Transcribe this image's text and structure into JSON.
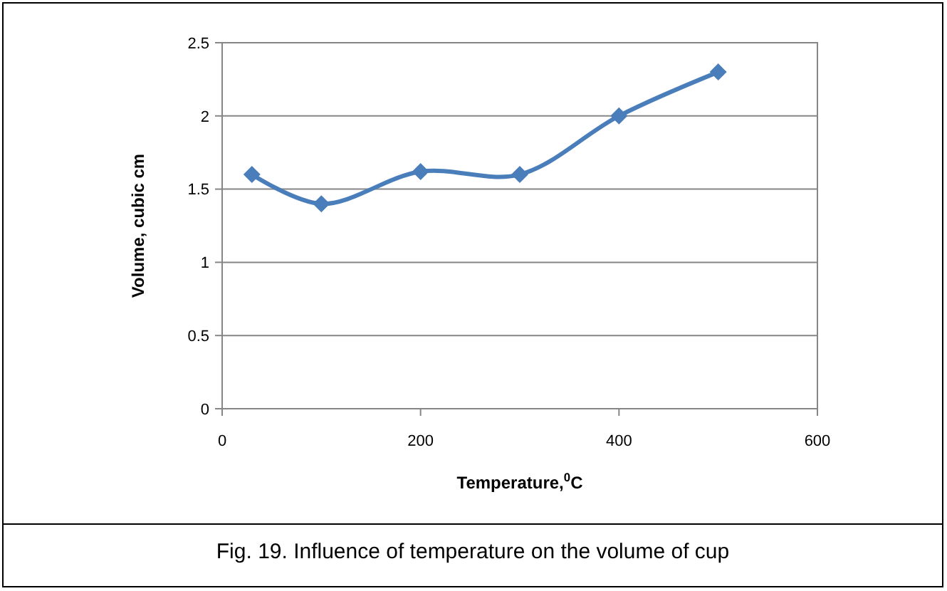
{
  "chart_data": {
    "type": "line",
    "xlabel": "Temperature,$^{0}$C",
    "ylabel": "Volume, cubic cm",
    "annotations": [
      "Fig. 19. Influence of temperature on the volume of cup"
    ],
    "x": [
      30,
      100,
      200,
      300,
      400,
      500
    ],
    "series": [
      {
        "color": "#4a7ebb",
        "values": [
          1.6,
          1.4,
          1.62,
          1.6,
          2.0,
          2.3
        ]
      }
    ],
    "xlim": [
      0,
      600
    ],
    "xticks": [
      0,
      200,
      400,
      600
    ],
    "ylim": [
      0,
      2.5
    ],
    "yticks": [
      0,
      0.5,
      1,
      1.5,
      2,
      2.5
    ],
    "grid": "y",
    "marker": "diamond",
    "line_style": "solid"
  }
}
